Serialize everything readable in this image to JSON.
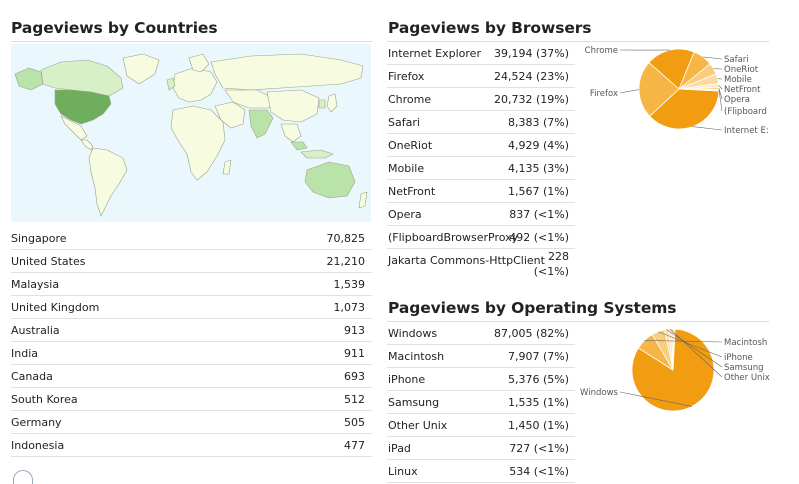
{
  "countries": {
    "title": "Pageviews by Countries",
    "rows": [
      {
        "label": "Singapore",
        "value": "70,825"
      },
      {
        "label": "United States",
        "value": "21,210"
      },
      {
        "label": "Malaysia",
        "value": "1,539"
      },
      {
        "label": "United Kingdom",
        "value": "1,073"
      },
      {
        "label": "Australia",
        "value": "913"
      },
      {
        "label": "India",
        "value": "911"
      },
      {
        "label": "Canada",
        "value": "693"
      },
      {
        "label": "South Korea",
        "value": "512"
      },
      {
        "label": "Germany",
        "value": "505"
      },
      {
        "label": "Indonesia",
        "value": "477"
      }
    ],
    "map_colors": {
      "ocean": "#eaf7fd",
      "land": "#f7fbe0",
      "border": "#9aa38a",
      "high": "#6fae5c",
      "mid": "#b9e3a8",
      "low": "#d8f0c8"
    }
  },
  "browsers": {
    "title": "Pageviews by Browsers",
    "rows": [
      {
        "label": "Internet Explorer",
        "value": "39,194 (37%)"
      },
      {
        "label": "Firefox",
        "value": "24,524 (23%)"
      },
      {
        "label": "Chrome",
        "value": "20,732 (19%)"
      },
      {
        "label": "Safari",
        "value": "8,383 (7%)"
      },
      {
        "label": "OneRiot",
        "value": "4,929 (4%)"
      },
      {
        "label": "Mobile",
        "value": "4,135 (3%)"
      },
      {
        "label": "NetFront",
        "value": "1,567 (1%)"
      },
      {
        "label": "Opera",
        "value": "837 (<1%)"
      },
      {
        "label": "(FlipboardBrowserProxy",
        "value": "492 (<1%)"
      },
      {
        "label": "Jakarta Commons-HttpClient",
        "value_line1": "228",
        "value_line2": "(<1%)"
      }
    ],
    "pie_labels": {
      "left": [
        "Chrome",
        "Firefox"
      ],
      "right": [
        "Safari",
        "OneRiot",
        "Mobile",
        "NetFront",
        "Opera",
        "(Flipboard",
        "Internet E:"
      ]
    }
  },
  "os": {
    "title": "Pageviews by Operating Systems",
    "rows": [
      {
        "label": "Windows",
        "value": "87,005 (82%)"
      },
      {
        "label": "Macintosh",
        "value": "7,907 (7%)"
      },
      {
        "label": "iPhone",
        "value": "5,376 (5%)"
      },
      {
        "label": "Samsung",
        "value": "1,535 (1%)"
      },
      {
        "label": "Other Unix",
        "value": "1,450 (1%)"
      },
      {
        "label": "iPad",
        "value": "727 (<1%)"
      },
      {
        "label": "Linux",
        "value": "534 (<1%)"
      }
    ],
    "pie_labels": {
      "left": [
        "Windows"
      ],
      "right": [
        "Macintosh",
        "iPhone",
        "Samsung",
        "Other Unix"
      ]
    }
  },
  "pie_colors": {
    "dark": "#f29c11",
    "mid": "#f6b545",
    "light": "#f9cd7d",
    "lighter": "#fbdca0",
    "lightest": "#fde9c4",
    "stroke": "#ffffff",
    "leader": "#666666"
  },
  "chart_data": [
    {
      "type": "pie",
      "title": "Pageviews by Browsers",
      "categories": [
        "Internet Explorer",
        "Firefox",
        "Chrome",
        "Safari",
        "OneRiot",
        "Mobile",
        "NetFront",
        "Opera",
        "(FlipboardBrowserProxy",
        "Jakarta Commons-HttpClient"
      ],
      "values": [
        39194,
        24524,
        20732,
        8383,
        4929,
        4135,
        1567,
        837,
        492,
        228
      ]
    },
    {
      "type": "pie",
      "title": "Pageviews by Operating Systems",
      "categories": [
        "Windows",
        "Macintosh",
        "iPhone",
        "Samsung",
        "Other Unix",
        "iPad",
        "Linux"
      ],
      "values": [
        87005,
        7907,
        5376,
        1535,
        1450,
        727,
        534
      ]
    }
  ]
}
